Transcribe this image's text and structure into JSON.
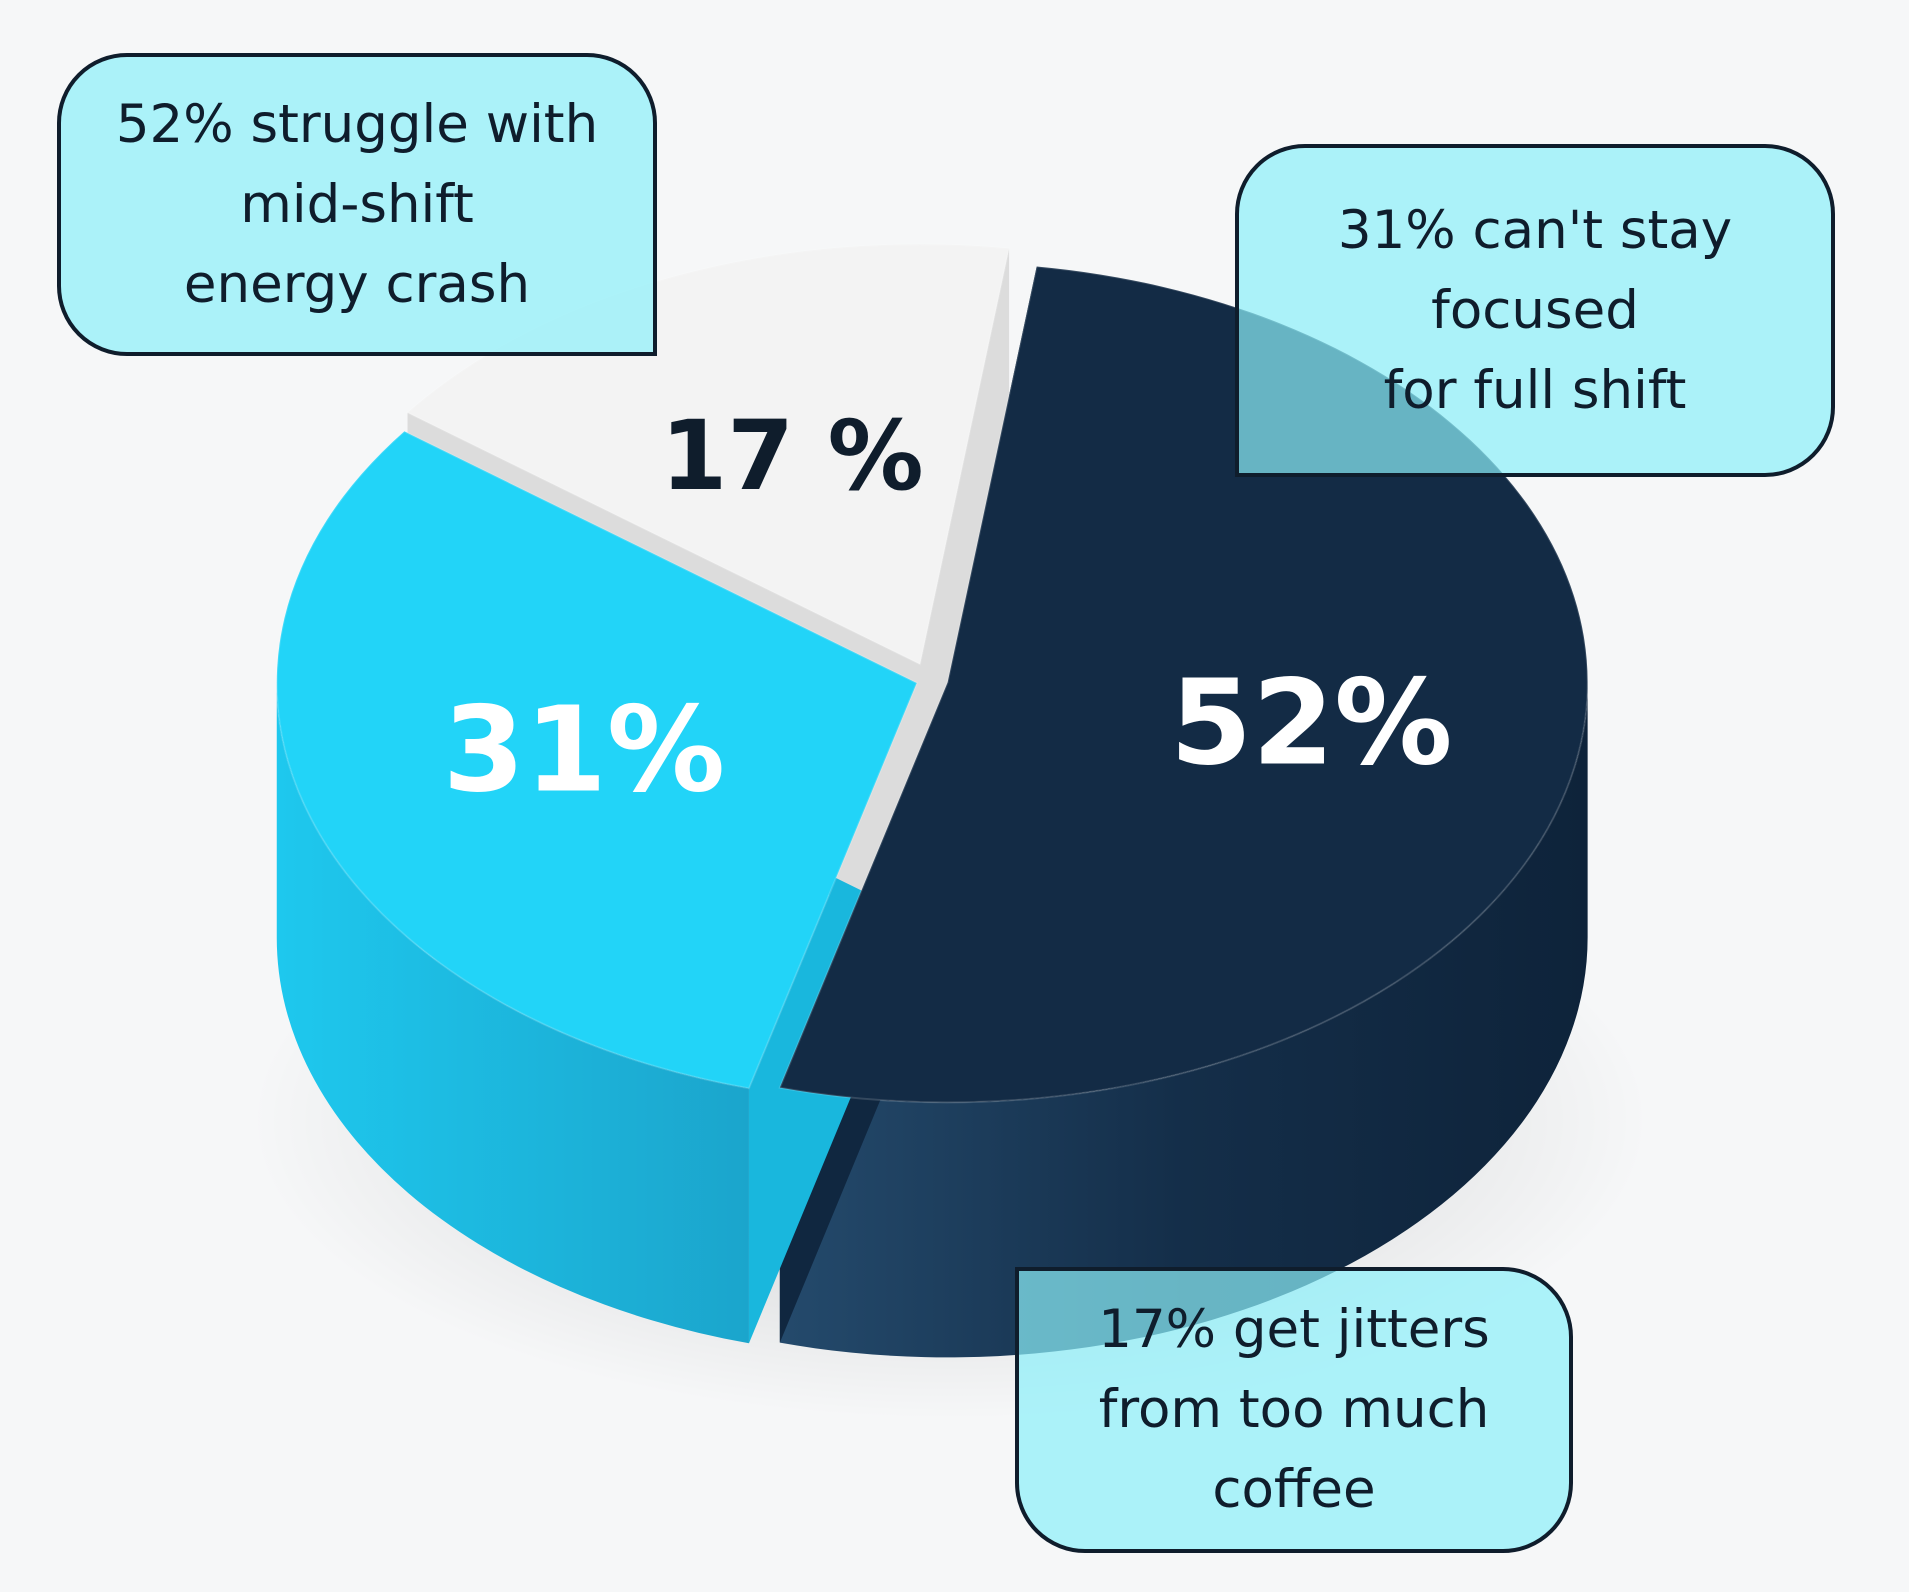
{
  "chart_data": {
    "type": "pie",
    "categories": [
      "52% struggle with mid-shift energy crash",
      "31% can't stay focused for full shift",
      "17% get jitters from too much coffee"
    ],
    "values": [
      52,
      31,
      17
    ],
    "data_labels": [
      "52%",
      "31%",
      "17 %"
    ],
    "colors": [
      "#132b45",
      "#22d4f8",
      "#f3f3f3"
    ],
    "label_colors": [
      "#ffffff",
      "#ffffff",
      "#0f1d2c"
    ],
    "style": "3d",
    "legend": "callouts"
  },
  "callouts": [
    {
      "lines": [
        "52% struggle with",
        "mid-shift",
        "energy crash"
      ]
    },
    {
      "lines": [
        "31% can't stay",
        "focused",
        "for full shift"
      ]
    },
    {
      "lines": [
        "17% get jitters",
        "from too much",
        "coffee"
      ]
    }
  ]
}
